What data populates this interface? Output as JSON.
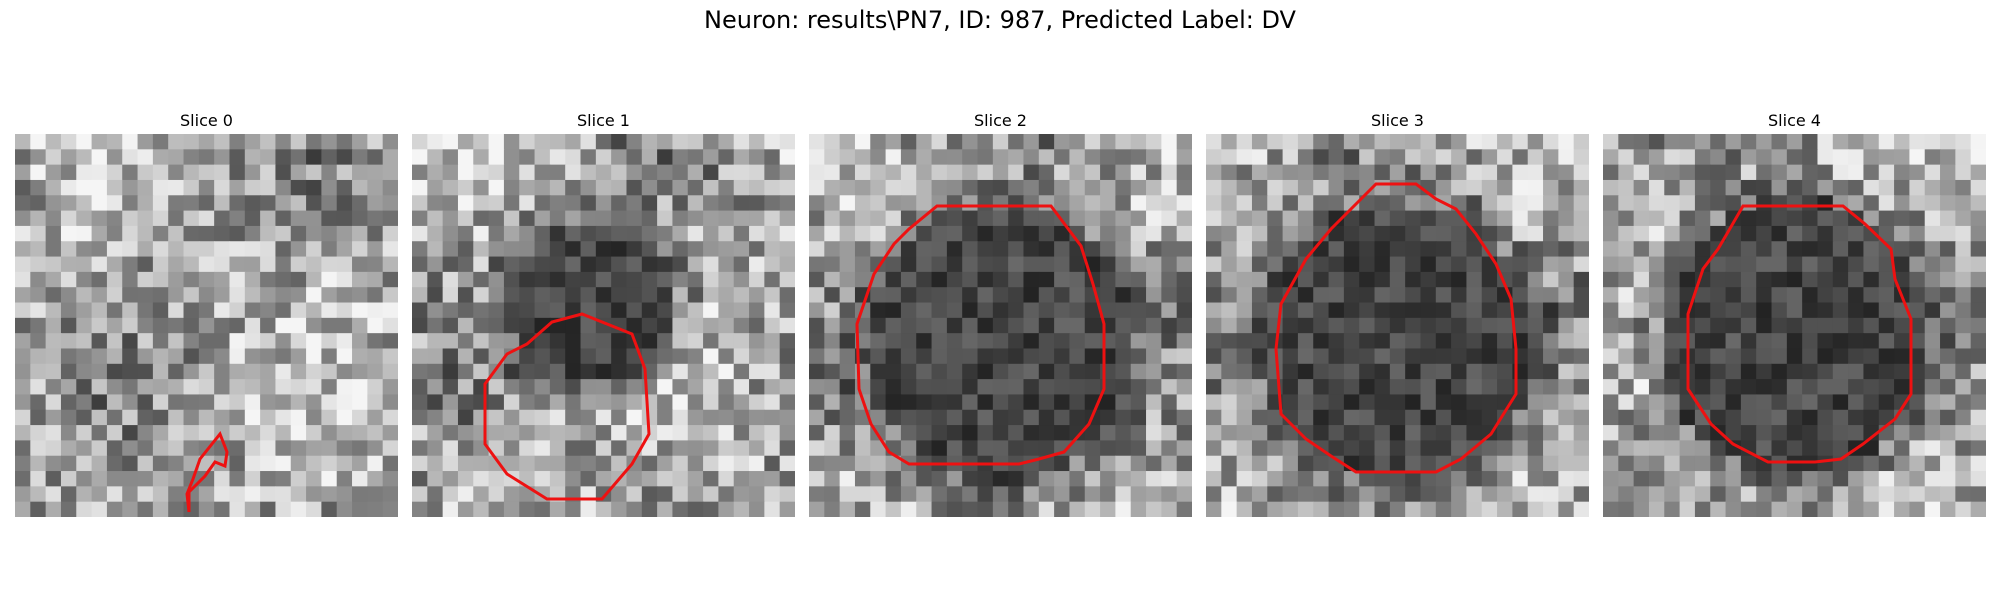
{
  "figure": {
    "title": "Neuron: results\\PN7, ID: 987, Predicted Label: DV"
  },
  "colors": {
    "contour": "#ee1111",
    "background": "#ffffff"
  },
  "panels": [
    {
      "label": "Slice 0",
      "seed": 11,
      "blob": 0
    },
    {
      "label": "Slice 1",
      "seed": 23,
      "blob": 1
    },
    {
      "label": "Slice 2",
      "seed": 37,
      "blob": 2
    },
    {
      "label": "Slice 3",
      "seed": 41,
      "blob": 3
    },
    {
      "label": "Slice 4",
      "seed": 53,
      "blob": 4
    }
  ]
}
